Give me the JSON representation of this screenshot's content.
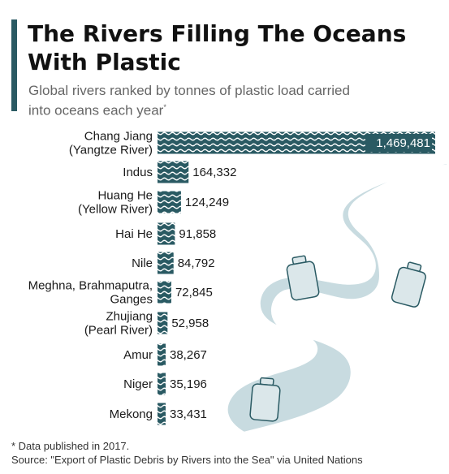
{
  "header": {
    "title": "The Rivers Filling The Oceans With Plastic",
    "subtitle": "Global rivers ranked by tonnes of plastic load carried into oceans each year",
    "subtitle_marker": "*"
  },
  "footer": {
    "note": "* Data published in 2017.",
    "source": "Source: \"Export of Plastic Debris by Rivers into the Sea\" via United Nations"
  },
  "colors": {
    "bar": "#2a5a63",
    "river": "#c8dbe0",
    "bottle": "#dbe7ea",
    "outline": "#ffffff"
  },
  "chart_data": {
    "type": "bar",
    "orientation": "horizontal",
    "categories": [
      [
        "Chang Jiang",
        "(Yangtze River)"
      ],
      [
        "Indus"
      ],
      [
        "Huang He",
        "(Yellow River)"
      ],
      [
        "Hai He"
      ],
      [
        "Nile"
      ],
      [
        "Meghna, Brahmaputra,",
        "Ganges"
      ],
      [
        "Zhujiang",
        "(Pearl River)"
      ],
      [
        "Amur"
      ],
      [
        "Niger"
      ],
      [
        "Mekong"
      ]
    ],
    "values": [
      1469481,
      164332,
      124249,
      91858,
      84792,
      72845,
      52958,
      38267,
      35196,
      33431
    ],
    "value_labels": [
      "1,469,481",
      "164,332",
      "124,249",
      "91,858",
      "84,792",
      "72,845",
      "52,958",
      "38,267",
      "35,196",
      "33,431"
    ],
    "unit": "tonnes",
    "xlim": [
      0,
      1469481
    ],
    "grid": false,
    "legend": "none"
  }
}
